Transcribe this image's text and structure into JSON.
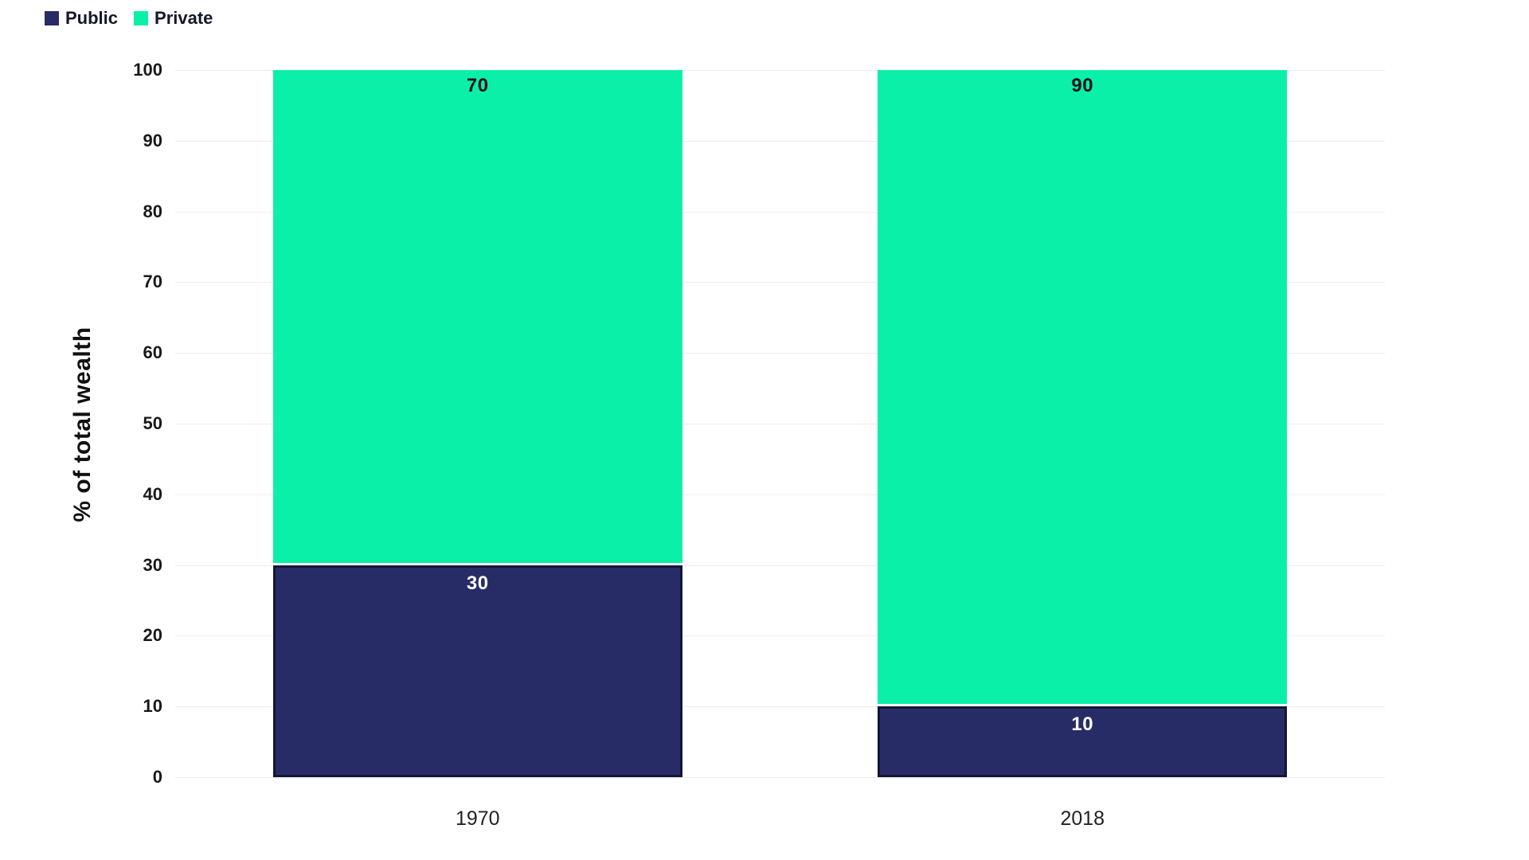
{
  "chart_data": {
    "type": "bar",
    "stacked": true,
    "categories": [
      "1970",
      "2018"
    ],
    "series": [
      {
        "name": "Public",
        "color": "#282c66",
        "border_color": "#131638",
        "label_color": "#ffffff",
        "values": [
          30,
          10
        ]
      },
      {
        "name": "Private",
        "color": "#0bf0a9",
        "label_color": "#101018",
        "values": [
          70,
          90
        ]
      }
    ],
    "title": "",
    "xlabel": "",
    "ylabel": "% of total wealth",
    "ylim": [
      0,
      100
    ],
    "yticks": [
      0,
      10,
      20,
      30,
      40,
      50,
      60,
      70,
      80,
      90,
      100
    ],
    "grid": true,
    "grid_color": "#ececec",
    "legend_position": "top-left",
    "background": "#ffffff"
  }
}
